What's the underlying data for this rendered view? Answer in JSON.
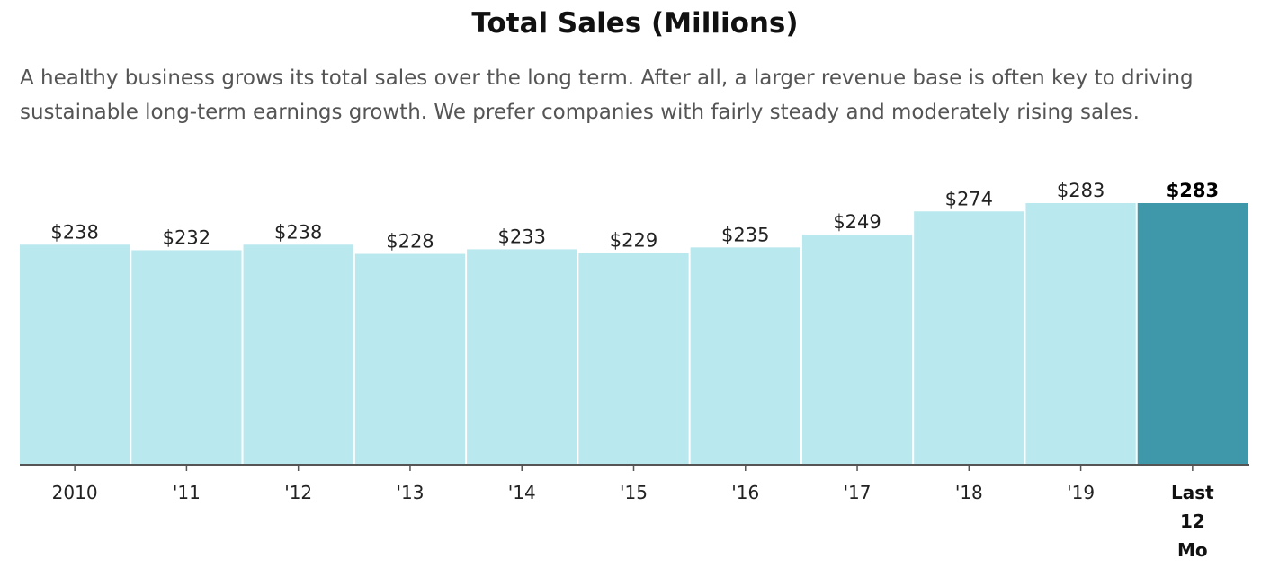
{
  "chart_data": {
    "type": "bar",
    "title": "Total Sales (Millions)",
    "subtitle": "A healthy business grows its total sales over the long term. After all, a larger revenue base is often key to driving sustainable long-term earnings growth. We prefer companies with fairly steady and moderately rising sales.",
    "categories": [
      "2010",
      "'11",
      "'12",
      "'13",
      "'14",
      "'15",
      "'16",
      "'17",
      "'18",
      "'19",
      [
        "Last",
        "12",
        "Mo"
      ]
    ],
    "values": [
      238,
      232,
      238,
      228,
      233,
      229,
      235,
      249,
      274,
      283,
      283
    ],
    "value_labels": [
      "$238",
      "$232",
      "$238",
      "$228",
      "$233",
      "$229",
      "$235",
      "$249",
      "$274",
      "$283",
      "$283"
    ],
    "highlight_index": 10,
    "ylim": [
      0,
      283
    ],
    "grid": false,
    "colors": {
      "bar": "#b9e8ee",
      "highlight_bar": "#3f98aa",
      "axis": "#555555"
    }
  }
}
